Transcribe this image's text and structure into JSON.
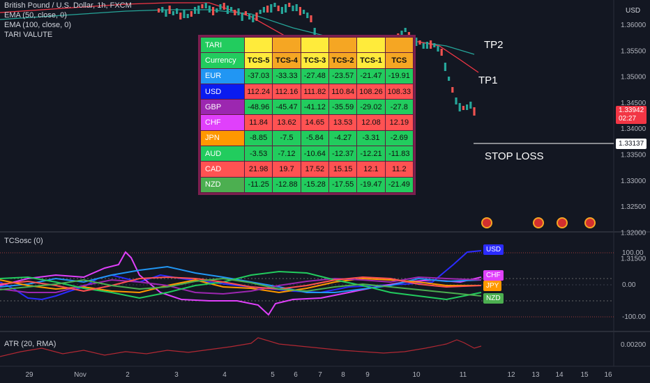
{
  "legend": {
    "symbol": "British Pound / U.S. Dollar, 1h, FXCM",
    "ema50": "EMA (50, close, 0)",
    "ema100": "EMA (100, close, 0)",
    "tari": "TARI VALUTE",
    "osc": "TCSosc (0)",
    "atr": "ATR (20, RMA)"
  },
  "annotations": {
    "tp2": "TP2",
    "tp1": "TP1",
    "stop_loss": "STOP LOSS"
  },
  "price_axis": {
    "currency": "USD",
    "ticks": [
      "1.36000",
      "1.35500",
      "1.35000",
      "1.34500",
      "1.34000",
      "1.33500",
      "1.33000",
      "1.32500",
      "1.32000",
      "1.31500"
    ],
    "current_price": "1.33942",
    "countdown": "02:27",
    "stop_price": "1.33137",
    "current_color": "#f23645"
  },
  "osc_axis": {
    "ticks": [
      "100.00",
      "0.00",
      "-100.00"
    ],
    "labels": [
      "USD",
      "CHF",
      "JPY",
      "NZD"
    ]
  },
  "atr_axis": {
    "ticks": [
      "0.00200"
    ]
  },
  "time_axis": {
    "ticks": [
      "29",
      "Nov",
      "2",
      "3",
      "4",
      "5",
      "6",
      "7",
      "8",
      "9",
      "10",
      "11",
      "12",
      "13",
      "14",
      "15",
      "16"
    ]
  },
  "tari_table": {
    "title": "TARI",
    "header_label": "Currency",
    "columns": [
      "TCS-5",
      "TCS-4",
      "TCS-3",
      "TCS-2",
      "TCS-1",
      "TCS"
    ],
    "column_colors": [
      "#ffeb3b",
      "#f5a623",
      "#ffeb3b",
      "#f5a623",
      "#ffeb3b",
      "#f5a623"
    ],
    "rows": [
      {
        "currency": "EUR",
        "color": "#2196f3",
        "values": [
          "-37.03",
          "-33.33",
          "-27.48",
          "-23.57",
          "-21.47",
          "-19.91"
        ]
      },
      {
        "currency": "USD",
        "color": "#0a1bf0",
        "values": [
          "112.24",
          "112.16",
          "111.82",
          "110.84",
          "108.26",
          "108.33"
        ]
      },
      {
        "currency": "GBP",
        "color": "#9c27b0",
        "values": [
          "-48.96",
          "-45.47",
          "-41.12",
          "-35.59",
          "-29.02",
          "-27.8"
        ]
      },
      {
        "currency": "CHF",
        "color": "#e040fb",
        "values": [
          "11.84",
          "13.62",
          "14.65",
          "13.53",
          "12.08",
          "12.19"
        ]
      },
      {
        "currency": "JPN",
        "color": "#ff9800",
        "values": [
          "-8.85",
          "-7.5",
          "-5.84",
          "-4.27",
          "-3.31",
          "-2.69"
        ]
      },
      {
        "currency": "AUD",
        "color": "#22cc5e",
        "values": [
          "-3.53",
          "-7.12",
          "-10.64",
          "-12.37",
          "-12.21",
          "-11.83"
        ]
      },
      {
        "currency": "CAD",
        "color": "#ff5252",
        "values": [
          "21.98",
          "19.7",
          "17.52",
          "15.15",
          "12.1",
          "11.2"
        ]
      },
      {
        "currency": "NZD",
        "color": "#4caf50",
        "values": [
          "-11.25",
          "-12.88",
          "-15.28",
          "-17.55",
          "-19.47",
          "-21.49"
        ]
      }
    ]
  }
}
